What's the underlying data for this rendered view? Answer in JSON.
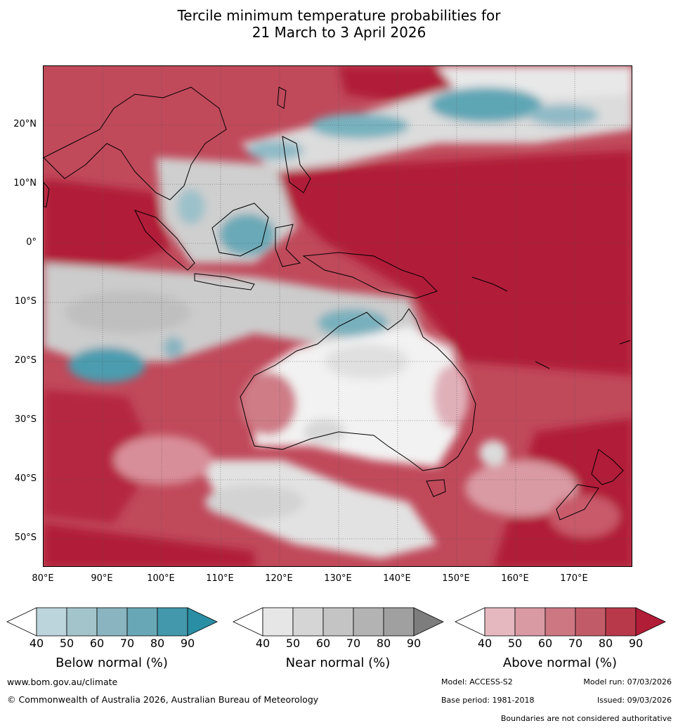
{
  "title_line1": "Tercile minimum temperature probabilities for",
  "title_line2": "21 March to 3 April 2026",
  "lat_labels": [
    "20°N",
    "10°N",
    "0°",
    "10°S",
    "20°S",
    "30°S",
    "40°S",
    "50°S"
  ],
  "lon_labels": [
    "80°E",
    "90°E",
    "100°E",
    "110°E",
    "120°E",
    "130°E",
    "140°E",
    "150°E",
    "160°E",
    "170°E"
  ],
  "colorbars": [
    {
      "title": "Below normal (%)",
      "ticks": [
        "40",
        "50",
        "60",
        "70",
        "80",
        "90"
      ],
      "colors": [
        "#ffffff",
        "#bcd4dc",
        "#a4c4cb",
        "#89b4c0",
        "#68a8b6",
        "#4399ab",
        "#2a8ea4"
      ]
    },
    {
      "title": "Near normal (%)",
      "ticks": [
        "40",
        "50",
        "60",
        "70",
        "80",
        "90"
      ],
      "colors": [
        "#ffffff",
        "#e6e6e6",
        "#d5d5d5",
        "#c4c4c4",
        "#b3b3b3",
        "#a0a0a0",
        "#7d7d7d"
      ]
    },
    {
      "title": "Above normal (%)",
      "ticks": [
        "40",
        "50",
        "60",
        "70",
        "80",
        "90"
      ],
      "colors": [
        "#ffffff",
        "#e5b8c0",
        "#d99aa3",
        "#cd7783",
        "#c25b68",
        "#b7394a",
        "#b11c37"
      ]
    }
  ],
  "footer": {
    "website": "www.bom.gov.au/climate",
    "copyright": "© Commonwealth of Australia 2026, Australian Bureau of Meteorology",
    "model": "Model: ACCESS-S2",
    "model_run": "Model run: 07/03/2026",
    "base_period": "Base period: 1981-2018",
    "issued": "Issued: 09/03/2026",
    "disclaimer": "Boundaries are not considered authoritative"
  }
}
